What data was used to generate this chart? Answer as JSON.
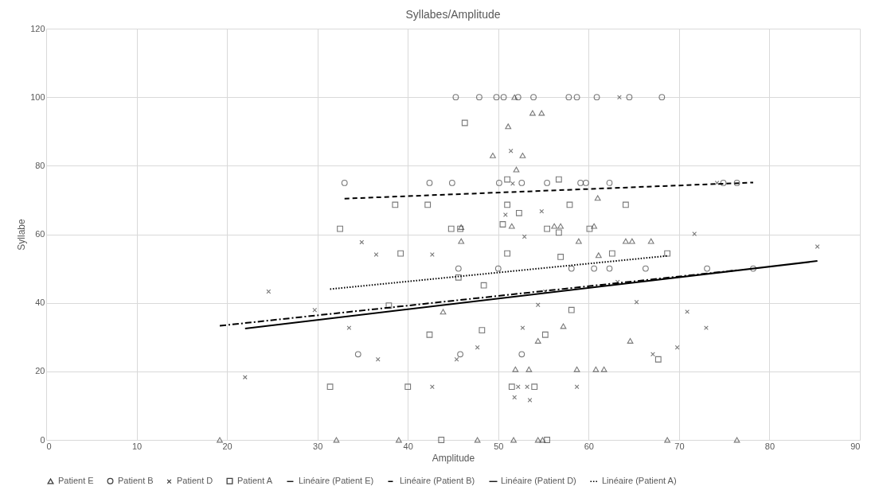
{
  "chart_data": {
    "type": "scatter",
    "title": "Syllabes/Amplitude",
    "xlabel": "Amplitude",
    "ylabel": "Syllabe",
    "xlim": [
      0,
      90
    ],
    "xticks": [
      0,
      10,
      20,
      30,
      40,
      50,
      60,
      70,
      80,
      90
    ],
    "ylim": [
      0,
      120
    ],
    "yticks": [
      0,
      20,
      40,
      60,
      80,
      100,
      120
    ],
    "grid": true,
    "legend": "bottom",
    "series": [
      {
        "name": "Patient E",
        "marker": "triangle",
        "color": "#404040",
        "x": [
          19.2,
          32.1,
          39.0,
          47.7,
          51.7,
          54.4,
          54.9,
          68.7,
          76.4,
          51.9,
          53.4,
          58.7,
          60.8,
          61.7,
          54.4,
          64.6,
          57.2,
          43.9,
          61.1,
          45.9,
          58.9,
          64.1,
          64.8,
          66.9,
          45.9,
          51.5,
          56.2,
          56.9,
          60.6,
          61.0,
          52.0,
          49.4,
          52.7,
          51.1,
          53.8,
          54.8,
          51.8
        ],
        "values": [
          0,
          0,
          0,
          0,
          0,
          0,
          0,
          0,
          0,
          20.6,
          20.6,
          20.6,
          20.6,
          20.6,
          28.9,
          28.9,
          33.2,
          37.4,
          53.9,
          58,
          58,
          58,
          58,
          58,
          62.1,
          62.4,
          62.4,
          62.4,
          62.4,
          70.6,
          78.9,
          83,
          83,
          91.5,
          95.4,
          95.4,
          100
        ]
      },
      {
        "name": "Patient B",
        "marker": "circle",
        "color": "#404040",
        "x": [
          45.3,
          47.9,
          49.8,
          50.6,
          52.2,
          53.9,
          57.8,
          58.7,
          60.9,
          64.5,
          68.1,
          33.0,
          42.4,
          44.9,
          50.1,
          52.6,
          55.4,
          59.1,
          59.7,
          62.3,
          74.9,
          76.4,
          45.6,
          50.0,
          58.1,
          60.6,
          62.3,
          66.3,
          73.1,
          78.2,
          34.5,
          45.8,
          52.6
        ],
        "values": [
          100,
          100,
          100,
          100,
          100,
          100,
          100,
          100,
          100,
          100,
          100,
          75,
          75,
          75,
          75,
          75,
          75,
          75,
          75,
          75,
          75,
          75,
          50,
          50,
          50,
          50,
          50,
          50,
          50,
          50,
          25,
          25,
          25
        ]
      },
      {
        "name": "Patient D",
        "marker": "cross",
        "color": "#404040",
        "x": [
          22.0,
          24.6,
          29.7,
          33.5,
          34.9,
          36.5,
          36.7,
          42.7,
          42.7,
          45.4,
          47.7,
          50.8,
          51.4,
          51.6,
          51.8,
          52.2,
          52.7,
          52.9,
          53.2,
          53.5,
          54.4,
          54.8,
          55.2,
          58.7,
          63.2,
          63.4,
          65.3,
          67.1,
          69.8,
          70.9,
          71.7,
          73.0,
          74.2,
          85.3
        ],
        "values": [
          18.3,
          43.3,
          37.9,
          32.7,
          57.7,
          54.1,
          23.5,
          54.1,
          15.5,
          23.5,
          27,
          65.7,
          84.3,
          74.8,
          12.4,
          15.5,
          32.7,
          59.3,
          15.5,
          11.6,
          39.4,
          66.7,
          43.3,
          15.5,
          46.1,
          100,
          40.2,
          25,
          27,
          37.4,
          60.1,
          32.7,
          75,
          56.4
        ]
      },
      {
        "name": "Patient A",
        "marker": "square",
        "color": "#404040",
        "x": [
          31.4,
          32.5,
          37.9,
          38.6,
          39.2,
          40.0,
          42.2,
          42.4,
          43.7,
          44.8,
          45.6,
          45.8,
          46.3,
          48.2,
          48.4,
          50.5,
          51.0,
          51.0,
          51.0,
          51.5,
          52.3,
          54.0,
          55.2,
          55.4,
          55.4,
          56.7,
          56.7,
          56.9,
          57.9,
          58.1,
          60.1,
          62.6,
          64.1,
          67.7,
          68.7
        ],
        "values": [
          15.5,
          61.6,
          39.2,
          68.6,
          54.4,
          15.5,
          68.6,
          30.7,
          0,
          61.6,
          47.4,
          61.6,
          92.5,
          32,
          45.1,
          62.9,
          76,
          68.6,
          54.4,
          15.5,
          66.2,
          15.5,
          30.7,
          61.6,
          0,
          76,
          60.5,
          53.4,
          68.6,
          37.9,
          61.6,
          54.4,
          68.6,
          23.5,
          54.4
        ]
      },
      {
        "name": "Linéaire (Patient E)",
        "type": "line",
        "line_style": "dashdot",
        "color": "#000000",
        "x": [
          19.2,
          76.4
        ],
        "values": [
          33.3,
          49.5
        ]
      },
      {
        "name": "Linéaire (Patient B)",
        "type": "line",
        "line_style": "dashed",
        "color": "#000000",
        "x": [
          33.0,
          78.2
        ],
        "values": [
          70.4,
          75.1
        ]
      },
      {
        "name": "Linéaire (Patient D)",
        "type": "line",
        "line_style": "solid",
        "color": "#000000",
        "x": [
          22.0,
          85.3
        ],
        "values": [
          32.5,
          52.2
        ]
      },
      {
        "name": "Linéaire (Patient A)",
        "type": "line",
        "line_style": "dotted",
        "color": "#000000",
        "x": [
          31.4,
          68.7
        ],
        "values": [
          44.0,
          53.7
        ]
      }
    ]
  }
}
